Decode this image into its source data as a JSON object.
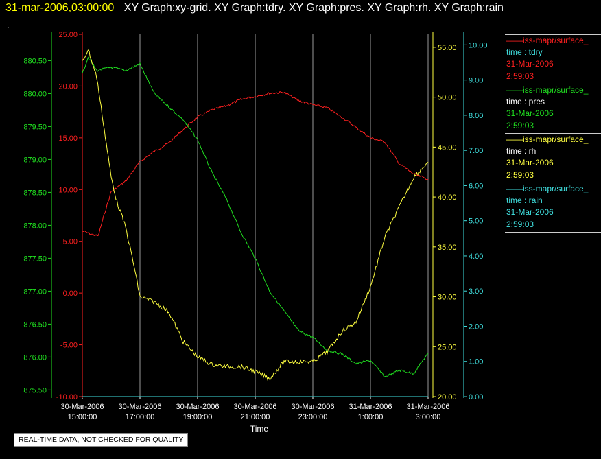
{
  "header": {
    "timestamp": "31-mar-2006,03:00:00",
    "graphs": "XY Graph:xy-grid.  XY Graph:tdry.  XY Graph:pres.  XY Graph:rh.  XY Graph:rain",
    "dot": "."
  },
  "disclaimer": "REAL-TIME DATA, NOT CHECKED FOR QUALITY",
  "legend": [
    {
      "name": "iss-mapr/surface_",
      "var": "time : tdry",
      "date": "31-Mar-2006",
      "time": "2:59:03",
      "color": "#ff2020"
    },
    {
      "name": "iss-mapr/surface_",
      "var": "time : pres",
      "date": "31-Mar-2006",
      "time": "2:59:03",
      "color": "#20e020"
    },
    {
      "name": "iss-mapr/surface_",
      "var": "time : rh",
      "date": "31-Mar-2006",
      "time": "2:59:03",
      "color": "#ffff40"
    },
    {
      "name": "iss-mapr/surface_",
      "var": "time : rain",
      "date": "31-Mar-2006",
      "time": "2:59:03",
      "color": "#40e0e0"
    }
  ],
  "chart_data": {
    "type": "line",
    "xlabel": "Time",
    "x_ticks": [
      {
        "date": "30-Mar-2006",
        "time": "15:00:00"
      },
      {
        "date": "30-Mar-2006",
        "time": "17:00:00"
      },
      {
        "date": "30-Mar-2006",
        "time": "19:00:00"
      },
      {
        "date": "30-Mar-2006",
        "time": "21:00:00"
      },
      {
        "date": "30-Mar-2006",
        "time": "23:00:00"
      },
      {
        "date": "31-Mar-2006",
        "time": "1:00:00"
      },
      {
        "date": "31-Mar-2006",
        "time": "3:00:00"
      }
    ],
    "xlim_hours": [
      15,
      27
    ],
    "grid_x": true,
    "axes": {
      "pres": {
        "color": "#20e020",
        "ylim": [
          875.4,
          880.9
        ],
        "ticks": [
          "875.50",
          "876.00",
          "876.50",
          "877.00",
          "877.50",
          "878.00",
          "878.50",
          "879.00",
          "879.50",
          "880.00",
          "880.50"
        ]
      },
      "tdry": {
        "color": "#ff2020",
        "ylim": [
          -10,
          25
        ],
        "ticks": [
          "-10.00",
          "-5.00",
          "0.00",
          "5.00",
          "10.00",
          "15.00",
          "20.00",
          "25.00"
        ]
      },
      "rh": {
        "color": "#ffff40",
        "ylim": [
          20,
          56.3
        ],
        "ticks": [
          "20.00",
          "25.00",
          "30.00",
          "35.00",
          "40.00",
          "45.00",
          "50.00",
          "55.00"
        ]
      },
      "rain": {
        "color": "#40e0e0",
        "ylim": [
          0,
          10.3
        ],
        "ticks": [
          "0.00",
          "1.00",
          "2.00",
          "3.00",
          "4.00",
          "5.00",
          "6.00",
          "7.00",
          "8.00",
          "9.00",
          "10.00"
        ]
      }
    },
    "series": [
      {
        "name": "time : tdry",
        "axis": "tdry",
        "color": "#ff2020",
        "x": [
          15.0,
          15.3,
          15.55,
          15.75,
          16.0,
          16.5,
          17.0,
          17.5,
          18.0,
          18.5,
          19.0,
          19.5,
          20.0,
          20.5,
          21.0,
          21.5,
          22.0,
          22.5,
          23.0,
          23.5,
          24.0,
          24.5,
          25.0,
          25.5,
          26.0,
          26.5,
          27.0
        ],
        "y": [
          6.0,
          5.7,
          5.5,
          7.5,
          9.8,
          10.8,
          12.7,
          13.7,
          14.5,
          15.8,
          17.0,
          17.7,
          18.1,
          18.7,
          19.0,
          19.3,
          19.4,
          18.6,
          18.2,
          17.9,
          17.0,
          16.0,
          15.0,
          14.6,
          12.5,
          11.5,
          11.0
        ]
      },
      {
        "name": "time : pres",
        "axis": "pres",
        "color": "#20e020",
        "x": [
          15.0,
          15.2,
          15.5,
          16.0,
          16.5,
          17.0,
          17.5,
          18.0,
          18.5,
          19.0,
          19.5,
          20.0,
          20.5,
          21.0,
          21.5,
          22.0,
          22.5,
          23.0,
          23.5,
          24.0,
          24.5,
          25.0,
          25.5,
          26.0,
          26.5,
          26.9,
          27.0
        ],
        "y": [
          880.3,
          880.55,
          880.35,
          880.4,
          880.35,
          880.45,
          880.0,
          879.8,
          879.6,
          879.3,
          878.8,
          878.4,
          877.9,
          877.5,
          877.0,
          876.7,
          876.4,
          876.3,
          876.1,
          876.05,
          875.9,
          875.95,
          875.7,
          875.8,
          875.75,
          876.0,
          876.05
        ]
      },
      {
        "name": "time : rh",
        "axis": "rh",
        "color": "#ffff40",
        "x": [
          15.0,
          15.2,
          15.5,
          15.8,
          16.0,
          16.2,
          16.5,
          16.8,
          17.0,
          17.5,
          18.0,
          18.5,
          19.0,
          19.5,
          20.0,
          20.5,
          21.0,
          21.5,
          22.0,
          22.5,
          23.0,
          23.5,
          24.0,
          24.5,
          25.0,
          25.3,
          25.5,
          26.0,
          26.5,
          27.0
        ],
        "y": [
          53.5,
          54.8,
          52.0,
          46.0,
          42.0,
          39.5,
          37.0,
          33.0,
          30.0,
          29.5,
          28.5,
          25.5,
          24.0,
          23.2,
          23.0,
          23.0,
          22.5,
          21.8,
          23.5,
          23.5,
          23.5,
          24.5,
          26.5,
          27.5,
          31.0,
          34.0,
          36.0,
          39.0,
          42.0,
          43.5
        ]
      },
      {
        "name": "time : rain",
        "axis": "rain",
        "color": "#40e0e0",
        "x": [
          15.0,
          27.0
        ],
        "y": [
          0.0,
          0.0
        ]
      }
    ]
  }
}
